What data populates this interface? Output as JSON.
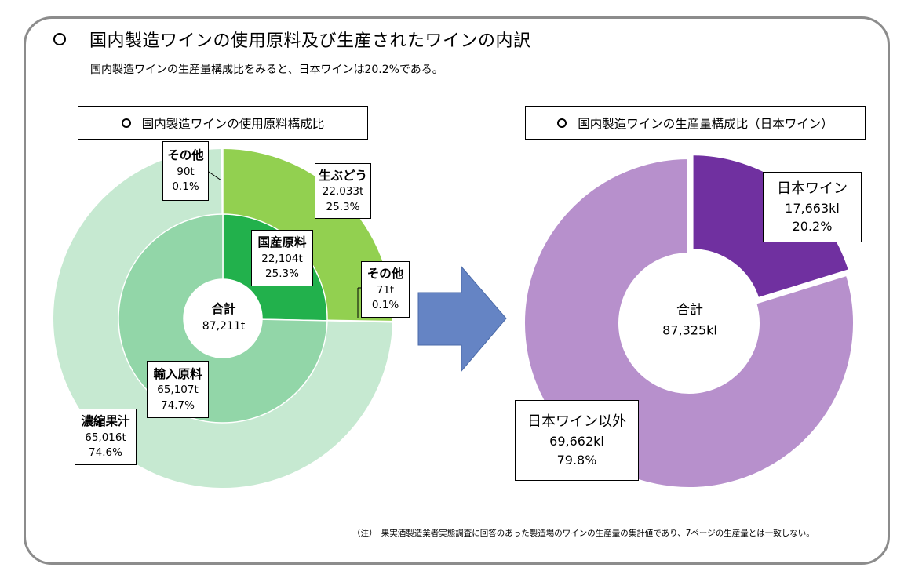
{
  "title": "国内製造ワインの使用原料及び生産されたワインの内訳",
  "subtitle": "国内製造ワインの生産量構成比をみると、日本ワインは20.2%である。",
  "note": "（注）　果実酒製造業者実態調査に回答のあった製造場のワインの生産量の集計値であり、7ページの生産量とは一致しない。",
  "chart_data": [
    {
      "type": "pie",
      "subtype": "nested-donut",
      "title": "国内製造ワインの使用原料構成比",
      "center_label": {
        "name": "合計",
        "value": "87,211t"
      },
      "unit": "t",
      "rings": [
        {
          "ring": "inner",
          "slices": [
            {
              "name": "国産原料",
              "value": 22104,
              "value_label": "22,104t",
              "percent": 25.3,
              "percent_label": "25.3%",
              "color": "#22b14c"
            },
            {
              "name": "輸入原料",
              "value": 65107,
              "value_label": "65,107t",
              "percent": 74.7,
              "percent_label": "74.7%",
              "color": "#92d6a8"
            }
          ]
        },
        {
          "ring": "outer",
          "slices": [
            {
              "name": "生ぶどう",
              "value": 22033,
              "value_label": "22,033t",
              "percent": 25.3,
              "percent_label": "25.3%",
              "color": "#92d050"
            },
            {
              "name": "その他",
              "value": 71,
              "value_label": "71t",
              "percent": 0.1,
              "percent_label": "0.1%",
              "color": "#92d050"
            },
            {
              "name": "濃縮果汁",
              "value": 65016,
              "value_label": "65,016t",
              "percent": 74.6,
              "percent_label": "74.6%",
              "color": "#c6e9d1"
            },
            {
              "name": "その他",
              "value": 90,
              "value_label": "90t",
              "percent": 0.1,
              "percent_label": "0.1%",
              "color": "#c6e9d1"
            }
          ]
        }
      ]
    },
    {
      "type": "pie",
      "subtype": "donut",
      "title": "国内製造ワインの生産量構成比（日本ワイン）",
      "center_label": {
        "name": "合計",
        "value": "87,325kl"
      },
      "unit": "kl",
      "slices": [
        {
          "name": "日本ワイン",
          "value": 17663,
          "value_label": "17,663kl",
          "percent": 20.2,
          "percent_label": "20.2%",
          "color": "#7030a0",
          "exploded": true
        },
        {
          "name": "日本ワイン以外",
          "value": 69662,
          "value_label": "69,662kl",
          "percent": 79.8,
          "percent_label": "79.8%",
          "color": "#b790cc"
        }
      ]
    }
  ],
  "arrow_color": "#6584c4",
  "frame_color": "#8c8c8c"
}
